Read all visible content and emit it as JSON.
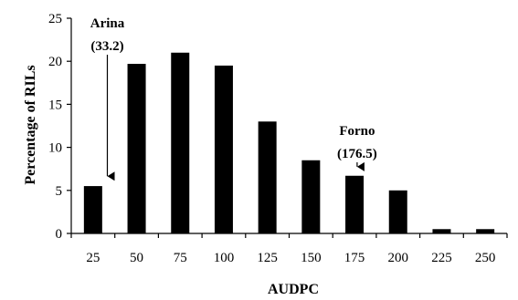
{
  "chart_data": {
    "type": "bar",
    "categories": [
      "25",
      "50",
      "75",
      "100",
      "125",
      "150",
      "175",
      "200",
      "225",
      "250"
    ],
    "values": [
      5.5,
      19.7,
      21.0,
      19.5,
      13.0,
      8.5,
      6.7,
      5.0,
      0.5,
      0.5
    ],
    "xlabel": "AUDPC",
    "ylabel": "Percentage of RILs",
    "ylim": [
      0,
      25
    ],
    "yticks": [
      "0",
      "5",
      "10",
      "15",
      "20",
      "25"
    ],
    "grid": false,
    "bar_color": "#000000",
    "annotations": [
      {
        "name_label": "Arina",
        "value_label": "(33.2)",
        "x": 33.2,
        "arrow_to_y": 5.8
      },
      {
        "name_label": "Forno",
        "value_label": "(176.5)",
        "x": 176.5,
        "arrow_to_y": 6.9
      }
    ]
  }
}
